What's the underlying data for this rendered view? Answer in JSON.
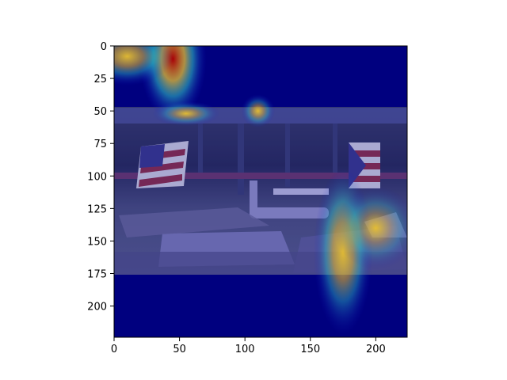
{
  "chart_data": {
    "type": "heatmap",
    "title": "",
    "xlabel": "",
    "ylabel": "",
    "xlim": [
      0,
      224
    ],
    "ylim": [
      224,
      0
    ],
    "xticks": [
      0,
      50,
      100,
      150,
      200
    ],
    "yticks": [
      0,
      25,
      50,
      75,
      100,
      125,
      150,
      175,
      200
    ],
    "grid": false,
    "colormap": "jet",
    "background_image": {
      "description_icon": "debris-scene-with-flags-image",
      "photo_rows": [
        47,
        175
      ]
    },
    "hotspots": [
      {
        "x": 45,
        "y": 10,
        "intensity": 1.0,
        "spread_x": 16,
        "spread_y": 30
      },
      {
        "x": 10,
        "y": 8,
        "intensity": 0.75,
        "spread_x": 22,
        "spread_y": 14
      },
      {
        "x": 55,
        "y": 52,
        "intensity": 0.55,
        "spread_x": 16,
        "spread_y": 6
      },
      {
        "x": 110,
        "y": 50,
        "intensity": 0.6,
        "spread_x": 8,
        "spread_y": 8
      },
      {
        "x": 175,
        "y": 158,
        "intensity": 0.75,
        "spread_x": 14,
        "spread_y": 40
      },
      {
        "x": 200,
        "y": 140,
        "intensity": 0.45,
        "spread_x": 20,
        "spread_y": 20
      }
    ]
  },
  "colors": {
    "cold": "#00007f",
    "mid_blue": "#1010c8",
    "cyan": "#30c8c8",
    "yellow": "#e8c030",
    "red": "#b00000"
  }
}
